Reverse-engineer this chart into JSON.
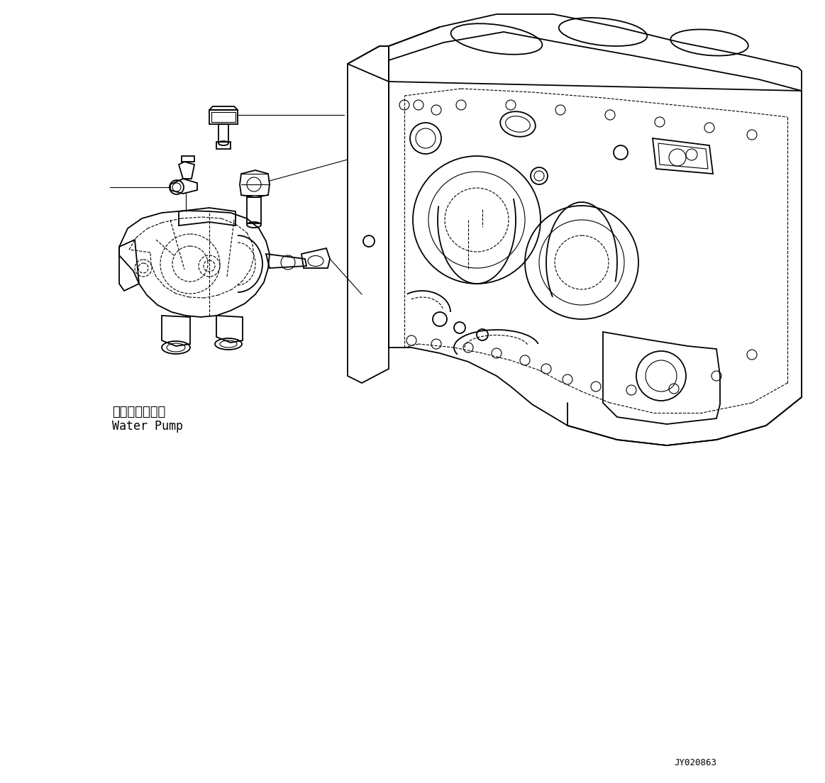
{
  "background_color": "#ffffff",
  "line_color": "#000000",
  "text_color": "#000000",
  "label_japanese": "ウォータポンプ",
  "label_english": "Water Pump",
  "part_number": "JY020863",
  "fig_width": 11.63,
  "fig_height": 11.04,
  "dpi": 100
}
